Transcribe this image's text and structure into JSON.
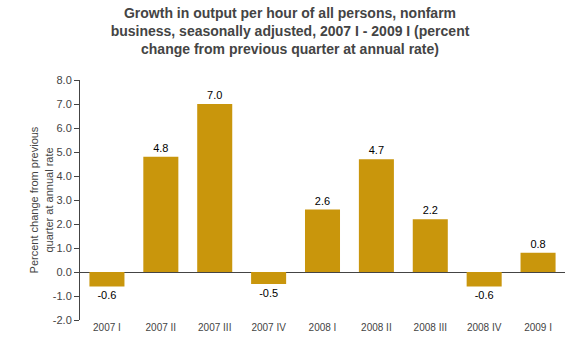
{
  "chart_data": {
    "type": "bar",
    "title": "Growth in output per hour of all persons, nonfarm\nbusiness, seasonally adjusted, 2007 I - 2009 I (percent\nchange from previous quarter at annual rate)",
    "ylabel": "Percent change from previous\nquarter at annual rate",
    "categories": [
      "2007 I",
      "2007 II",
      "2007 III",
      "2007 IV",
      "2008 I",
      "2008 II",
      "2008 III",
      "2008 IV",
      "2009 I"
    ],
    "values": [
      -0.6,
      4.8,
      7.0,
      -0.5,
      2.6,
      4.7,
      2.2,
      -0.6,
      0.8
    ],
    "value_labels": [
      "-0.6",
      "4.8",
      "7.0",
      "-0.5",
      "2.6",
      "4.7",
      "2.2",
      "-0.6",
      "0.8"
    ],
    "data_labels": true,
    "color": "#C9960C",
    "ylim": [
      -2.0,
      8.0
    ],
    "yticks": [
      {
        "value": -2.0,
        "label": "-2.0"
      },
      {
        "value": -1.0,
        "label": "-1.0"
      },
      {
        "value": 0.0,
        "label": "0.0"
      },
      {
        "value": 1.0,
        "label": "1.0"
      },
      {
        "value": 2.0,
        "label": "2.0"
      },
      {
        "value": 3.0,
        "label": "3.0"
      },
      {
        "value": 4.0,
        "label": "4.0"
      },
      {
        "value": 5.0,
        "label": "5.0"
      },
      {
        "value": 6.0,
        "label": "6.0"
      },
      {
        "value": 7.0,
        "label": "7.0"
      },
      {
        "value": 8.0,
        "label": "8.0"
      }
    ],
    "grid": false
  }
}
